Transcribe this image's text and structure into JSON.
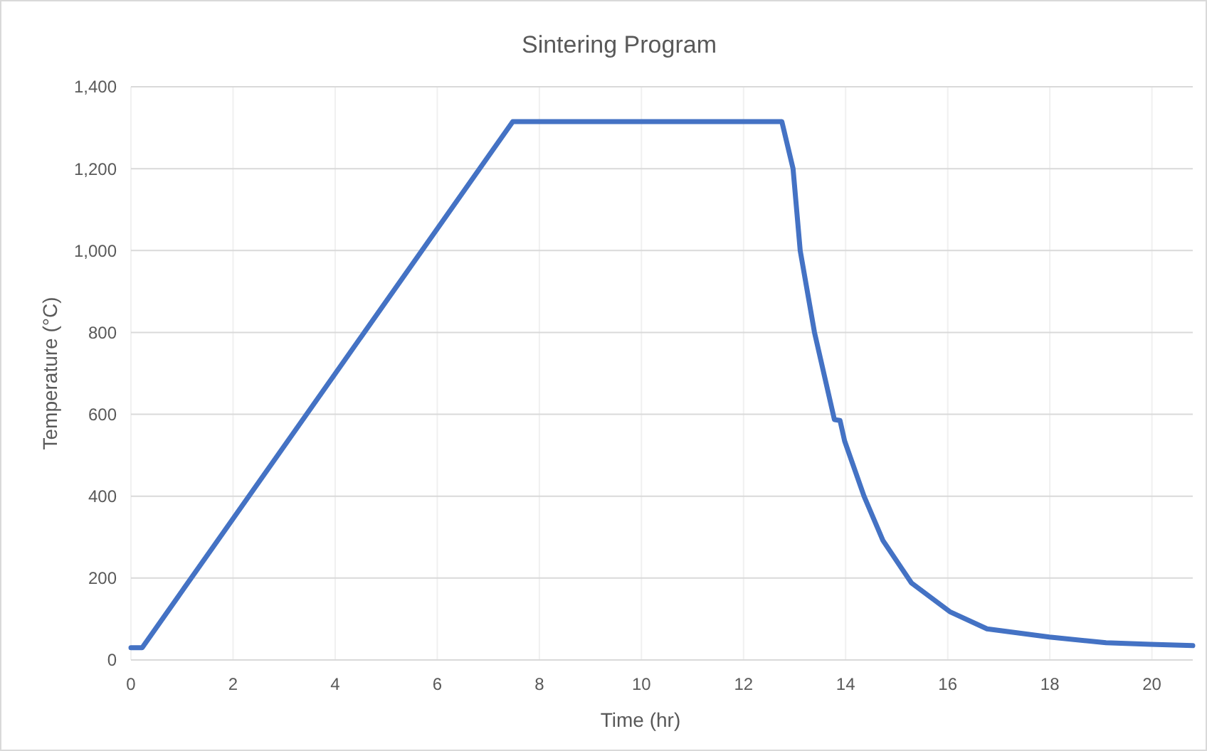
{
  "chart_data": {
    "type": "line",
    "title": "Sintering Program",
    "xlabel": "Time (hr)",
    "ylabel": "Temperature (°C)",
    "series": [
      {
        "color": "#4472c4",
        "x": [
          0,
          0.22,
          7.48,
          12.75,
          12.97,
          13.11,
          13.39,
          13.78,
          13.89,
          13.98,
          14.36,
          14.73,
          15.29,
          16.04,
          16.77,
          17.99,
          19.1,
          19.97,
          20.8
        ],
        "values": [
          30,
          30,
          1315,
          1315,
          1200,
          1000,
          800,
          587,
          585,
          535,
          400,
          292,
          188,
          118,
          76,
          56,
          42,
          38,
          35
        ]
      }
    ],
    "xlim": [
      0,
      20.8
    ],
    "xticks": [
      0,
      2,
      4,
      6,
      8,
      10,
      12,
      14,
      16,
      18,
      20
    ],
    "ylim": [
      0,
      1400
    ],
    "yticks": [
      {
        "value": 0,
        "label": "0"
      },
      {
        "value": 200,
        "label": "200"
      },
      {
        "value": 400,
        "label": "400"
      },
      {
        "value": 600,
        "label": "600"
      },
      {
        "value": 800,
        "label": "800"
      },
      {
        "value": 1000,
        "label": "1,000"
      },
      {
        "value": 1200,
        "label": "1,200"
      },
      {
        "value": 1400,
        "label": "1,400"
      }
    ],
    "grid": true,
    "marker": "none",
    "line_style": "solid"
  }
}
